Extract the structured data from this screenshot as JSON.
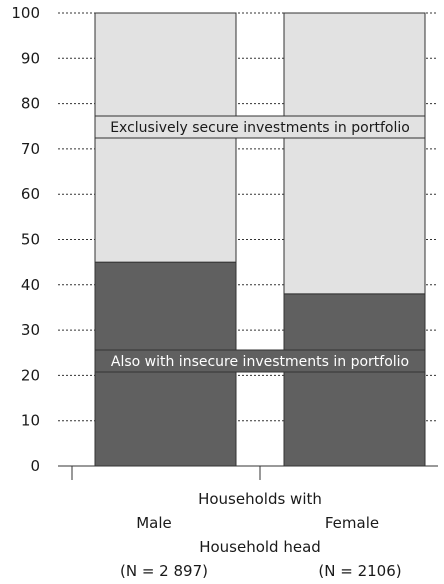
{
  "chart_data": {
    "type": "bar",
    "stacked": true,
    "categories": [
      "Male",
      "Female"
    ],
    "category_counts": [
      "(N = 2 897)",
      "(N = 2106)"
    ],
    "series": [
      {
        "name": "Also with insecure investments in portfolio",
        "values": [
          45,
          38
        ],
        "color": "#606060"
      },
      {
        "name": "Exclusively secure investments in portfolio",
        "values": [
          55,
          62
        ],
        "color": "#e2e2e2"
      }
    ],
    "ylim": [
      0,
      100
    ],
    "yticks": [
      0,
      10,
      20,
      30,
      40,
      50,
      60,
      70,
      80,
      90,
      100
    ],
    "xlabel_top": "Households with",
    "xlabel_bottom": "Household head",
    "grid": "dashed horizontal",
    "legend": "inline labels across bars"
  }
}
